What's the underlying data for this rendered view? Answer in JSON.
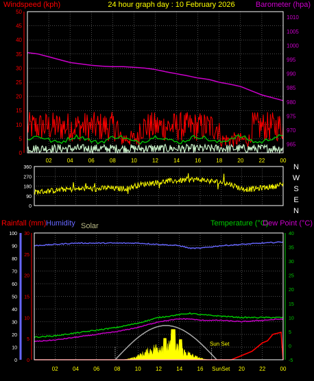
{
  "colors": {
    "background": "#000000",
    "grid": "#9a9a9a",
    "frame": "#ffffff",
    "wind_axis": "#ff0000",
    "wind_gust": "#ff0000",
    "wind_avg": "#00c000",
    "wind_speed": "#c8f0c8",
    "baro": "#cc00cc",
    "dir_line": "#ffff00",
    "time_labels": "#ffff00",
    "rain": "#ff0000",
    "humidity": "#6666ff",
    "temperature": "#00cc00",
    "dewpoint": "#cc00cc",
    "solar_fill": "#ffff00",
    "solar_curve": "#aaaaaa",
    "dir_letters": "#ffffff"
  },
  "chart_data": [
    {
      "type": "line",
      "name_hint": "wind-baro",
      "title": "24 hour graph day : 10 February 2026",
      "left_axis_label": "Windspeed (kph)",
      "right_axis_label": "Barometer (hpa)",
      "x_tick_labels": [
        "02",
        "04",
        "06",
        "08",
        "10",
        "12",
        "14",
        "16",
        "18",
        "20",
        "22",
        "00"
      ],
      "left_ylim": [
        0,
        50
      ],
      "left_ticks": [
        "0",
        "5",
        "10",
        "15",
        "20",
        "25",
        "30",
        "35",
        "40",
        "45",
        "50"
      ],
      "right_ylim": [
        962,
        1012
      ],
      "right_ticks": [
        "965",
        "970",
        "975",
        "980",
        "985",
        "990",
        "995",
        "1000",
        "1005",
        "1010"
      ],
      "grid": true,
      "barometer": {
        "x": [
          0,
          1,
          2,
          3,
          4,
          5,
          6,
          7,
          8,
          9,
          10,
          11,
          12,
          13,
          14,
          15,
          16,
          17,
          18,
          19,
          20,
          21,
          22,
          23,
          24
        ],
        "values": [
          997.5,
          997,
          996,
          995,
          994,
          993.5,
          993,
          992.7,
          992.5,
          992.5,
          992.3,
          992,
          991.5,
          990.7,
          990,
          989.3,
          988.5,
          988,
          987,
          986.3,
          985.5,
          984,
          982.5,
          981.5,
          980.5
        ]
      },
      "gust_range": [
        4,
        18
      ],
      "avg_range": [
        2,
        6
      ],
      "speed_range": [
        0,
        3
      ]
    },
    {
      "type": "line",
      "name_hint": "wind-direction",
      "ylim": [
        0,
        360
      ],
      "y_ticks": [
        "0",
        "90",
        "180",
        "270",
        "360"
      ],
      "compass_letters": [
        "N",
        "W",
        "S",
        "E",
        "N"
      ],
      "grid": true,
      "direction": {
        "x": [
          0,
          1,
          2,
          3,
          4,
          5,
          6,
          7,
          8,
          9,
          10,
          11,
          12,
          13,
          14,
          15,
          16,
          17,
          18,
          19,
          20,
          21,
          22,
          23,
          24
        ],
        "values": [
          125,
          130,
          140,
          150,
          150,
          160,
          150,
          165,
          155,
          160,
          190,
          205,
          215,
          225,
          230,
          240,
          240,
          225,
          215,
          195,
          155,
          150,
          165,
          175,
          195
        ]
      },
      "noise": 25
    },
    {
      "type": "line",
      "name_hint": "temp-rain-solar",
      "left_axis_label": "Rainfall (mm)",
      "left_axis_label2": "Humidity",
      "solar_label": "Solar",
      "right_axis_label": "Temperature (°C)",
      "right_axis_label2": "Dew Point (°C)",
      "humidity_ylim": [
        0,
        100
      ],
      "humidity_ticks": [
        "0",
        "10",
        "20",
        "30",
        "40",
        "50",
        "60",
        "70",
        "80",
        "90",
        "100"
      ],
      "rain_ylim": [
        0,
        30
      ],
      "rain_ticks": [
        "0",
        "5",
        "10",
        "15",
        "20",
        "25",
        "30"
      ],
      "temp_ylim": [
        -5,
        40
      ],
      "temp_ticks": [
        "-5",
        "0",
        "5",
        "10",
        "15",
        "20",
        "25",
        "30",
        "35",
        "40"
      ],
      "x_tick_labels": [
        "02",
        "04",
        "06",
        "08",
        "10",
        "12",
        "14",
        "16",
        "SunSet",
        "20",
        "22",
        "00"
      ],
      "sunset_annotation": "Sun Set",
      "grid": true,
      "humidity": {
        "x": [
          0,
          2,
          4,
          6,
          8,
          10,
          12,
          14,
          15,
          16,
          17,
          18,
          20,
          22,
          24
        ],
        "values": [
          90,
          91,
          92,
          92,
          92,
          92,
          91,
          90,
          88,
          88,
          89,
          90,
          91,
          92,
          93
        ]
      },
      "temperature": {
        "x": [
          0,
          2,
          4,
          6,
          8,
          10,
          12,
          14,
          15,
          16,
          18,
          20,
          22,
          24
        ],
        "values": [
          3,
          3.5,
          4.5,
          5.5,
          6.5,
          8,
          10,
          11,
          11.5,
          11,
          10.5,
          10,
          10,
          10
        ]
      },
      "dewpoint": {
        "x": [
          0,
          2,
          4,
          6,
          8,
          10,
          12,
          14,
          15,
          16,
          18,
          20,
          22,
          24
        ],
        "values": [
          1.5,
          2,
          3,
          4,
          5,
          6.5,
          8.5,
          9.5,
          9.5,
          9,
          9,
          8.5,
          9,
          9.5
        ]
      },
      "rainfall": {
        "x": [
          0,
          17,
          19,
          20,
          21,
          21.5,
          22,
          22.5,
          23,
          23.8,
          24
        ],
        "values": [
          0,
          0,
          0,
          1,
          2,
          3,
          4,
          4.5,
          6,
          6.5,
          0
        ]
      },
      "solar_theoretical_peak_x": 13,
      "solar_sunrise_x": 7.8,
      "solar_sunset_x": 17.6
    }
  ]
}
